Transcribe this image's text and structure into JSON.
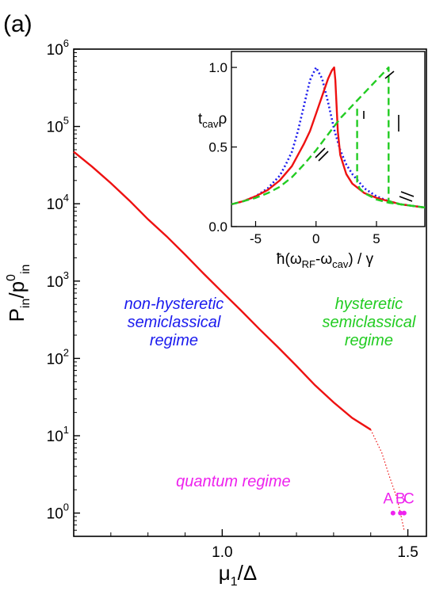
{
  "panel_label": "(a)",
  "chart_data": [
    {
      "id": "main",
      "type": "line",
      "x_axis": {
        "label_main": "μ",
        "label_sub": "1",
        "label_tail": "/Δ",
        "range": [
          0.6,
          1.55
        ],
        "ticks": [
          {
            "value": 1.0,
            "label": "1.0"
          },
          {
            "value": 1.5,
            "label": "1.5"
          }
        ],
        "minor_ticks": [
          0.7,
          0.8,
          0.9,
          1.1,
          1.2,
          1.3,
          1.4
        ]
      },
      "y_axis": {
        "label_main": "P",
        "label_sub1": "in",
        "label_mid": "/p",
        "label_sup": "0",
        "label_sub2": "in",
        "scale": "log",
        "range": [
          0.5,
          1000000
        ],
        "ticks": [
          {
            "value": 1,
            "base": "10",
            "exp": "0"
          },
          {
            "value": 10,
            "base": "10",
            "exp": "1"
          },
          {
            "value": 100,
            "base": "10",
            "exp": "2"
          },
          {
            "value": 1000,
            "base": "10",
            "exp": "3"
          },
          {
            "value": 10000,
            "base": "10",
            "exp": "4"
          },
          {
            "value": 100000,
            "base": "10",
            "exp": "5"
          },
          {
            "value": 1000000,
            "base": "10",
            "exp": "6"
          }
        ]
      },
      "series": [
        {
          "style": "solid",
          "color": "#ee1111",
          "x": [
            0.6,
            0.65,
            0.7,
            0.75,
            0.8,
            0.85,
            0.9,
            0.95,
            1.0,
            1.05,
            1.1,
            1.15,
            1.2,
            1.25,
            1.3,
            1.35,
            1.4
          ],
          "y": [
            47000,
            30000,
            18500,
            11000,
            6300,
            3800,
            2200,
            1250,
            720,
            420,
            240,
            140,
            80,
            45,
            27,
            17,
            12
          ]
        },
        {
          "style": "dotted",
          "color": "#ee1111",
          "x": [
            1.4,
            1.43,
            1.45,
            1.47,
            1.48,
            1.49
          ],
          "y": [
            12,
            6,
            3,
            1.6,
            1.0,
            0.6
          ]
        }
      ],
      "points": [
        {
          "label": "A",
          "x": 1.46,
          "y": 1.0,
          "color": "#ee22ee"
        },
        {
          "label": "B",
          "x": 1.48,
          "y": 1.0,
          "color": "#ee22ee"
        },
        {
          "label": "C",
          "x": 1.49,
          "y": 1.0,
          "color": "#ee22ee"
        }
      ],
      "annotations": [
        {
          "lines": [
            "non-hysteretic",
            "semiclassical",
            "regime"
          ],
          "color": "#1a1aee",
          "x": 0.87,
          "y": 300
        },
        {
          "lines": [
            "hysteretic",
            "semiclassical",
            "regime"
          ],
          "color": "#22cc22",
          "x": 1.395,
          "y": 300
        },
        {
          "lines": [
            "quantum regime"
          ],
          "color": "#ee22ee",
          "x": 1.03,
          "y": 2.6
        }
      ]
    },
    {
      "id": "inset",
      "type": "line",
      "x_axis": {
        "label_prefix": "ħ(ω",
        "label_sub1": "RF",
        "label_mid": "-ω",
        "label_sub2": "cav",
        "label_tail": ") / γ",
        "range": [
          -7,
          9
        ],
        "ticks": [
          {
            "value": -5,
            "label": "-5"
          },
          {
            "value": 0,
            "label": "0"
          },
          {
            "value": 5,
            "label": "5"
          }
        ]
      },
      "y_axis": {
        "label_main": "t",
        "label_sub": "cav",
        "label_tail": "ρ",
        "range": [
          0,
          1.1
        ],
        "ticks": [
          {
            "value": 0.0,
            "label": "0.0"
          },
          {
            "value": 0.5,
            "label": "0.5"
          },
          {
            "value": 1.0,
            "label": "1.0"
          }
        ]
      },
      "series": [
        {
          "style": "dotted",
          "color": "#1a1aee",
          "x": [
            -7,
            -6,
            -5,
            -4,
            -3,
            -2.5,
            -2,
            -1.5,
            -1,
            -0.5,
            0,
            0.5,
            1,
            1.5,
            2,
            2.5,
            3,
            4,
            5,
            6,
            7,
            8,
            9
          ],
          "y": [
            0.14,
            0.16,
            0.19,
            0.24,
            0.32,
            0.39,
            0.47,
            0.6,
            0.76,
            0.92,
            1.0,
            0.93,
            0.78,
            0.61,
            0.48,
            0.39,
            0.33,
            0.24,
            0.19,
            0.16,
            0.14,
            0.13,
            0.12
          ]
        },
        {
          "style": "solid",
          "color": "#ee1111",
          "x": [
            -7,
            -6,
            -5,
            -4,
            -3,
            -2,
            -1,
            -0.5,
            0,
            0.5,
            1,
            1.3,
            1.5,
            1.6,
            1.8,
            2,
            2.5,
            3,
            4,
            5,
            6,
            7,
            8,
            9
          ],
          "y": [
            0.14,
            0.16,
            0.19,
            0.23,
            0.29,
            0.38,
            0.52,
            0.6,
            0.71,
            0.82,
            0.93,
            0.98,
            1.0,
            0.92,
            0.6,
            0.45,
            0.33,
            0.27,
            0.21,
            0.18,
            0.16,
            0.14,
            0.13,
            0.12
          ]
        },
        {
          "style": "dashed",
          "color": "#22cc22",
          "x": [
            -7,
            -6,
            -5,
            -4,
            -3,
            -2,
            -1,
            0,
            1,
            2,
            3,
            4,
            5,
            6,
            6.0,
            6.5,
            7,
            8,
            9
          ],
          "y": [
            0.14,
            0.16,
            0.18,
            0.21,
            0.25,
            0.31,
            0.39,
            0.48,
            0.58,
            0.68,
            0.76,
            0.84,
            0.92,
            1.0,
            0.16,
            0.15,
            0.14,
            0.13,
            0.12
          ]
        },
        {
          "style": "dashed",
          "color": "#22cc22",
          "x": [
            3.4,
            3.4,
            3.6,
            4,
            5,
            6,
            7,
            8,
            9
          ],
          "y": [
            0.74,
            0.28,
            0.24,
            0.21,
            0.17,
            0.15,
            0.14,
            0.13,
            0.12
          ]
        }
      ]
    }
  ]
}
